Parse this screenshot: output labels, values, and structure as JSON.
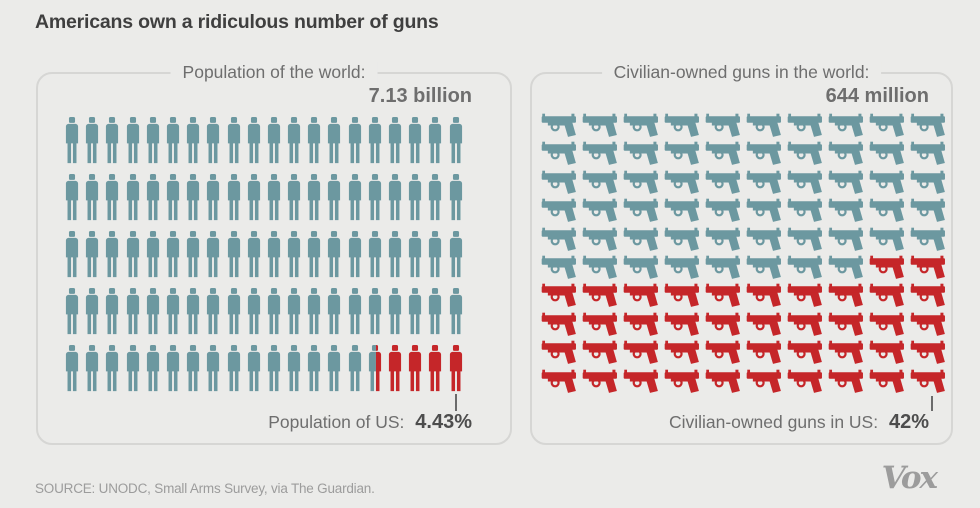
{
  "page": {
    "title": "Americans own a ridiculous number of guns",
    "source": "SOURCE: UNODC, Small Arms Survey, via The Guardian.",
    "brand": "Vox"
  },
  "colors": {
    "icon_base": "#6c98a0",
    "icon_highlight": "#c52629",
    "panel_border": "#d6d6d4",
    "heading_text": "#3f3f3f",
    "muted_text": "#6e6e6e",
    "source_text": "#9c9c9c",
    "background": "#ebebe9"
  },
  "chart_data": [
    {
      "type": "pictogram",
      "title": "Population of the world:",
      "total_label": "7.13 billion",
      "icon": "person",
      "icons_total": 100,
      "grid": {
        "rows": 5,
        "cols": 20
      },
      "icon_represents_percent": 1,
      "highlight": {
        "label": "Population of US:",
        "value": "4.43%",
        "icons": 4.43
      }
    },
    {
      "type": "pictogram",
      "title": "Civilian-owned guns in the world:",
      "total_label": "644 million",
      "icon": "handgun",
      "icons_total": 100,
      "grid": {
        "rows": 10,
        "cols": 10
      },
      "icon_represents_percent": 1,
      "highlight": {
        "label": "Civilian-owned guns in US:",
        "value": "42%",
        "icons": 42
      }
    }
  ]
}
